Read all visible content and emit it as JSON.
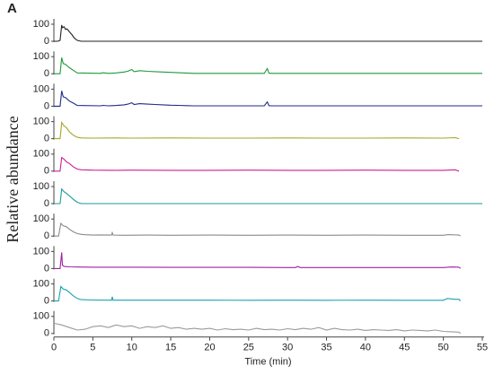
{
  "panel_label": "A",
  "y_label": "Relative abundance",
  "chart_data": [
    {
      "type": "line",
      "color": "#222222",
      "xlim": [
        0,
        55
      ],
      "ylim": [
        0,
        100
      ],
      "yticks": [
        0,
        100
      ],
      "x": [
        0,
        0.5,
        0.8,
        1,
        1.1,
        1.3,
        1.5,
        1.7,
        2,
        2.3,
        2.6,
        3,
        3.5,
        55
      ],
      "values": [
        0,
        0,
        5,
        95,
        80,
        85,
        70,
        72,
        55,
        40,
        20,
        5,
        0,
        0
      ]
    },
    {
      "type": "line",
      "color": "#1f9a3a",
      "xlim": [
        0,
        55
      ],
      "ylim": [
        0,
        100
      ],
      "yticks": [
        0,
        100
      ],
      "x": [
        0,
        0.8,
        1,
        1.2,
        1.5,
        2,
        2.5,
        3,
        6,
        6.3,
        7,
        7.5,
        8,
        9,
        9.5,
        10,
        10.3,
        11,
        12,
        13,
        14,
        15,
        16,
        17,
        18,
        27,
        27.4,
        27.6,
        28,
        55
      ],
      "values": [
        0,
        0,
        95,
        60,
        55,
        35,
        20,
        5,
        2,
        6,
        2,
        3,
        5,
        10,
        15,
        25,
        12,
        18,
        14,
        12,
        10,
        8,
        6,
        4,
        2,
        2,
        30,
        3,
        2,
        2
      ]
    },
    {
      "type": "line",
      "color": "#1f2a8c",
      "xlim": [
        0,
        55
      ],
      "ylim": [
        0,
        100
      ],
      "yticks": [
        0,
        100
      ],
      "x": [
        0,
        0.8,
        1,
        1.2,
        1.5,
        2,
        2.5,
        3,
        6,
        6.3,
        7,
        7.5,
        8,
        9,
        9.5,
        10,
        10.3,
        11,
        12,
        13,
        14,
        15,
        16,
        17,
        18,
        27,
        27.4,
        27.6,
        28,
        55
      ],
      "values": [
        0,
        0,
        90,
        55,
        50,
        30,
        18,
        4,
        2,
        5,
        2,
        3,
        4,
        8,
        12,
        20,
        10,
        15,
        12,
        10,
        8,
        6,
        5,
        3,
        2,
        2,
        25,
        3,
        2,
        2
      ]
    },
    {
      "type": "line",
      "color": "#a6a626",
      "xlim": [
        0,
        55
      ],
      "ylim": [
        0,
        100
      ],
      "yticks": [
        0,
        100
      ],
      "x": [
        0,
        0.8,
        1,
        1.3,
        1.6,
        2,
        2.5,
        3,
        3.5,
        5,
        8,
        10,
        15,
        20,
        25,
        30,
        35,
        40,
        45,
        50,
        51.5,
        52
      ],
      "values": [
        0,
        0,
        95,
        75,
        65,
        40,
        20,
        8,
        4,
        3,
        4,
        3,
        4,
        3,
        3,
        4,
        3,
        3,
        4,
        3,
        6,
        0
      ]
    },
    {
      "type": "line",
      "color": "#c8209a",
      "xlim": [
        0,
        55
      ],
      "ylim": [
        0,
        100
      ],
      "yticks": [
        0,
        100
      ],
      "x": [
        0,
        0.8,
        1,
        1.3,
        1.6,
        2,
        2.5,
        3,
        3.5,
        5,
        8,
        10,
        15,
        20,
        25,
        30,
        35,
        40,
        45,
        50,
        51.5,
        52
      ],
      "values": [
        0,
        0,
        80,
        70,
        55,
        45,
        25,
        12,
        8,
        6,
        5,
        6,
        5,
        5,
        6,
        5,
        5,
        6,
        5,
        5,
        8,
        0
      ]
    },
    {
      "type": "line",
      "color": "#1a9a9a",
      "xlim": [
        0,
        55
      ],
      "ylim": [
        0,
        100
      ],
      "yticks": [
        0,
        100
      ],
      "x": [
        0,
        0.8,
        1,
        1.3,
        1.6,
        2,
        2.5,
        3,
        3.5,
        55
      ],
      "values": [
        0,
        0,
        85,
        70,
        60,
        45,
        25,
        8,
        0,
        0
      ]
    },
    {
      "type": "line",
      "color": "#8a8a8a",
      "xlim": [
        0,
        55
      ],
      "ylim": [
        0,
        100
      ],
      "yticks": [
        0,
        100
      ],
      "x": [
        0,
        0.6,
        0.9,
        1.2,
        1.6,
        2,
        2.5,
        3,
        3.5,
        4,
        5,
        6,
        7.4,
        7.5,
        7.6,
        9,
        12,
        15,
        20,
        25,
        30,
        35,
        40,
        45,
        50,
        50.5,
        51,
        52,
        52.2
      ],
      "values": [
        0,
        0,
        75,
        60,
        55,
        40,
        25,
        15,
        10,
        8,
        6,
        7,
        6,
        20,
        6,
        5,
        6,
        5,
        6,
        5,
        6,
        5,
        6,
        5,
        5,
        8,
        8,
        6,
        0
      ]
    },
    {
      "type": "line",
      "color": "#a020a0",
      "xlim": [
        0,
        55
      ],
      "ylim": [
        0,
        100
      ],
      "yticks": [
        0,
        100
      ],
      "x": [
        0,
        0.8,
        1,
        1.1,
        1.3,
        2,
        3,
        5,
        10,
        15,
        20,
        25,
        30,
        31,
        31.3,
        31.6,
        35,
        40,
        45,
        50,
        51,
        52,
        52.2
      ],
      "values": [
        0,
        0,
        95,
        20,
        12,
        10,
        9,
        8,
        8,
        7,
        7,
        7,
        6,
        6,
        12,
        6,
        6,
        6,
        6,
        6,
        9,
        8,
        0
      ]
    },
    {
      "type": "line",
      "color": "#1aa0b0",
      "xlim": [
        0,
        55
      ],
      "ylim": [
        0,
        100
      ],
      "yticks": [
        0,
        100
      ],
      "x": [
        0,
        0.6,
        0.9,
        1.2,
        1.6,
        2,
        2.5,
        3,
        3.5,
        5,
        7.4,
        7.5,
        7.6,
        10,
        15,
        20,
        25,
        30,
        35,
        40,
        45,
        50,
        50.5,
        51.5,
        52,
        52.2
      ],
      "values": [
        0,
        0,
        85,
        70,
        65,
        50,
        30,
        15,
        8,
        6,
        5,
        25,
        5,
        5,
        5,
        5,
        4,
        5,
        4,
        5,
        4,
        4,
        15,
        10,
        10,
        0
      ]
    },
    {
      "type": "line",
      "color": "#9a9a9a",
      "xlim": [
        0,
        55
      ],
      "ylim": [
        0,
        100
      ],
      "yticks": [
        0,
        100
      ],
      "xticks": [
        0,
        5,
        10,
        15,
        20,
        25,
        30,
        35,
        40,
        45,
        50,
        55
      ],
      "xlabel": "Time (min)",
      "x": [
        0,
        1,
        2,
        3,
        4,
        5,
        6,
        7,
        8,
        9,
        10,
        11,
        12,
        13,
        14,
        15,
        16,
        17,
        18,
        19,
        20,
        21,
        22,
        23,
        24,
        25,
        26,
        27,
        28,
        29,
        30,
        31,
        32,
        33,
        34,
        35,
        36,
        37,
        38,
        39,
        40,
        41,
        42,
        43,
        44,
        45,
        46,
        47,
        48,
        49,
        50,
        51,
        52,
        52.2
      ],
      "values": [
        60,
        50,
        35,
        20,
        25,
        40,
        45,
        35,
        50,
        40,
        45,
        30,
        40,
        35,
        45,
        30,
        35,
        25,
        30,
        25,
        30,
        20,
        28,
        22,
        25,
        20,
        30,
        22,
        25,
        20,
        28,
        22,
        30,
        25,
        35,
        20,
        30,
        22,
        20,
        25,
        18,
        22,
        20,
        18,
        22,
        15,
        20,
        18,
        15,
        20,
        12,
        10,
        8,
        0
      ]
    }
  ]
}
